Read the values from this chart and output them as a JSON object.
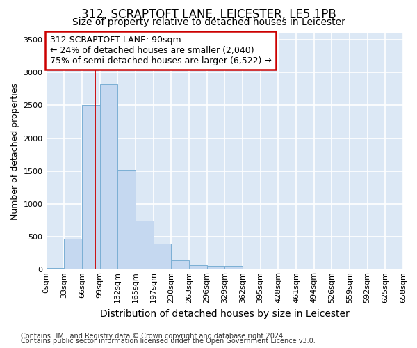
{
  "title1": "312, SCRAPTOFT LANE, LEICESTER, LE5 1PB",
  "title2": "Size of property relative to detached houses in Leicester",
  "xlabel": "Distribution of detached houses by size in Leicester",
  "ylabel": "Number of detached properties",
  "bar_values": [
    20,
    470,
    2500,
    2820,
    1520,
    740,
    390,
    140,
    70,
    55,
    55,
    0,
    0,
    0,
    0,
    0,
    0,
    0,
    0,
    0
  ],
  "bar_labels": [
    "0sqm",
    "33sqm",
    "66sqm",
    "99sqm",
    "132sqm",
    "165sqm",
    "197sqm",
    "230sqm",
    "263sqm",
    "296sqm",
    "329sqm",
    "362sqm",
    "395sqm",
    "428sqm",
    "461sqm",
    "494sqm",
    "526sqm",
    "559sqm",
    "592sqm",
    "625sqm",
    "658sqm"
  ],
  "bar_color": "#c5d8f0",
  "bar_edge_color": "#7bafd4",
  "axes_bg_color": "#dce8f5",
  "fig_bg_color": "#ffffff",
  "grid_color": "#ffffff",
  "vline_color": "#cc0000",
  "annotation_text": "312 SCRAPTOFT LANE: 90sqm\n← 24% of detached houses are smaller (2,040)\n75% of semi-detached houses are larger (6,522) →",
  "annotation_box_color": "#ffffff",
  "annotation_box_edge": "#cc0000",
  "ylim": [
    0,
    3600
  ],
  "yticks": [
    0,
    500,
    1000,
    1500,
    2000,
    2500,
    3000,
    3500
  ],
  "footer1": "Contains HM Land Registry data © Crown copyright and database right 2024.",
  "footer2": "Contains public sector information licensed under the Open Government Licence v3.0.",
  "title1_fontsize": 12,
  "title2_fontsize": 10,
  "xlabel_fontsize": 10,
  "ylabel_fontsize": 9,
  "tick_fontsize": 8,
  "annotation_fontsize": 9,
  "footer_fontsize": 7
}
